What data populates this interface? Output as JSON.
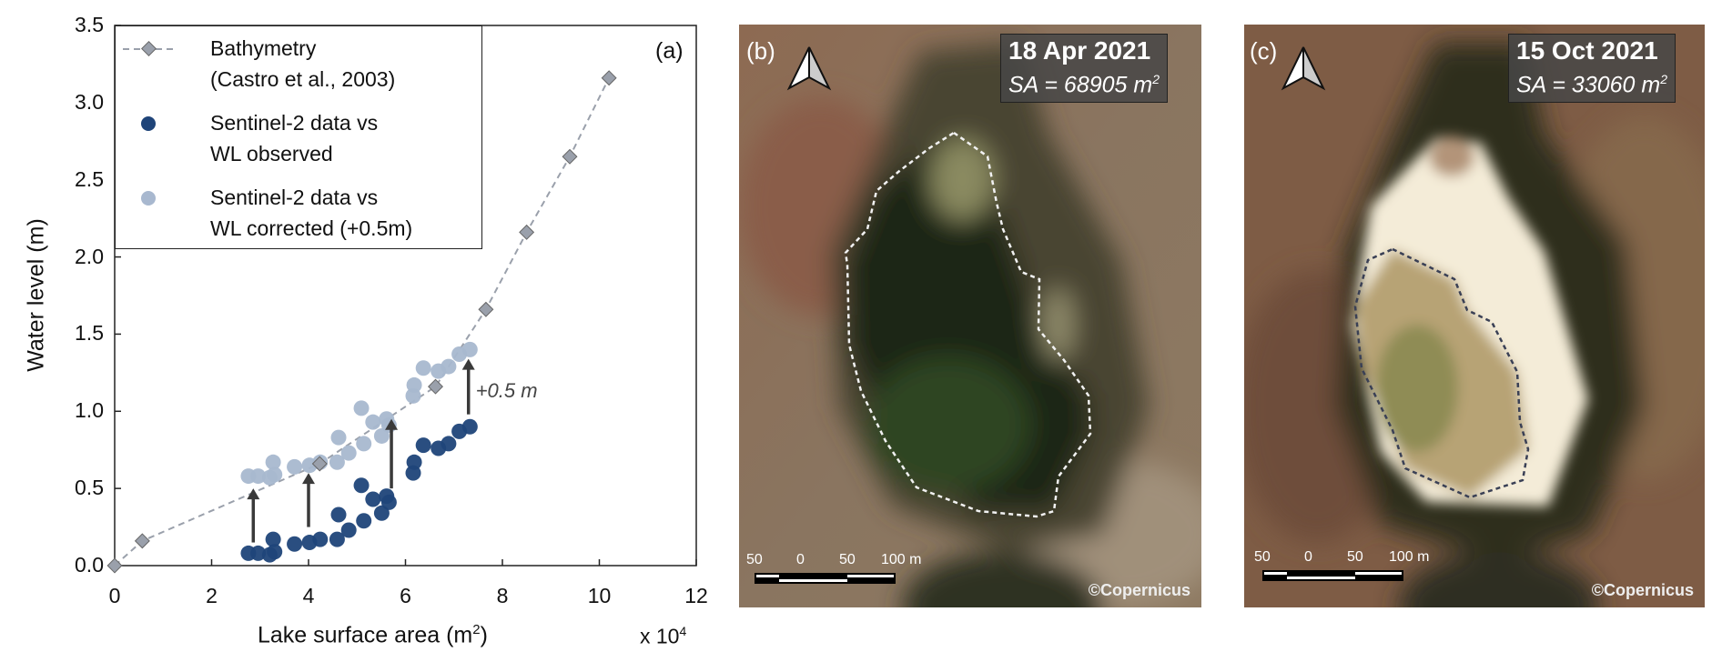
{
  "chart_data": {
    "type": "scatter",
    "panel_label": "(a)",
    "xlabel": "Lake surface area (m",
    "xlabel_sup": "2",
    "xlabel_end": ")",
    "x_multiplier": "x 10",
    "x_multiplier_sup": "4",
    "ylabel": "Water level (m)",
    "xlim": [
      0,
      12
    ],
    "ylim": [
      0,
      3.5
    ],
    "x_ticks": [
      "0",
      "2",
      "4",
      "6",
      "8",
      "10",
      "12"
    ],
    "y_ticks": [
      "0.0",
      "0.5",
      "1.0",
      "1.5",
      "2.0",
      "2.5",
      "3.0",
      "3.5"
    ],
    "grid": false,
    "legend_placement": "top-left",
    "series": [
      {
        "name": "Bathymetry (Castro et al., 2003)",
        "legend_lines": [
          "Bathymetry",
          "(Castro et al., 2003)"
        ],
        "style": "dashed-line-diamond",
        "color": "#9aa0ab",
        "x": [
          0,
          0.57,
          4.23,
          6.62,
          7.66,
          8.5,
          9.39,
          10.2
        ],
        "y": [
          0,
          0.16,
          0.66,
          1.16,
          1.66,
          2.16,
          2.65,
          3.16
        ]
      },
      {
        "name": "Sentinel-2 data vs WL observed",
        "legend_lines": [
          "Sentinel-2 data vs",
          "WL observed"
        ],
        "style": "circle",
        "color": "#1f4479",
        "x": [
          2.76,
          2.96,
          3.2,
          3.27,
          3.3,
          3.71,
          4.02,
          4.24,
          4.59,
          4.62,
          4.83,
          5.09,
          5.14,
          5.33,
          5.51,
          5.61,
          5.66,
          6.16,
          6.18,
          6.37,
          6.68,
          6.89,
          7.11,
          7.33
        ],
        "y": [
          0.08,
          0.08,
          0.07,
          0.17,
          0.09,
          0.14,
          0.15,
          0.17,
          0.17,
          0.33,
          0.23,
          0.52,
          0.29,
          0.43,
          0.34,
          0.45,
          0.41,
          0.6,
          0.67,
          0.78,
          0.76,
          0.79,
          0.87,
          0.9
        ]
      },
      {
        "name": "Sentinel-2 data vs WL corrected (+0.5m)",
        "legend_lines": [
          "Sentinel-2 data vs",
          "WL corrected (+0.5m)"
        ],
        "style": "circle",
        "color": "#a8b8cf",
        "x": [
          2.76,
          2.96,
          3.2,
          3.27,
          3.3,
          3.71,
          4.02,
          4.24,
          4.59,
          4.62,
          4.83,
          5.09,
          5.14,
          5.33,
          5.51,
          5.61,
          5.66,
          6.16,
          6.18,
          6.37,
          6.68,
          6.89,
          7.11,
          7.33
        ],
        "y": [
          0.58,
          0.58,
          0.57,
          0.67,
          0.59,
          0.64,
          0.65,
          0.67,
          0.67,
          0.83,
          0.73,
          1.02,
          0.79,
          0.93,
          0.84,
          0.95,
          0.91,
          1.1,
          1.17,
          1.28,
          1.26,
          1.29,
          1.37,
          1.4
        ]
      }
    ],
    "annotations": {
      "shift_label": "+0.5 m",
      "arrows": [
        {
          "x": 2.86,
          "y_from": 0.15,
          "y_to": 0.5
        },
        {
          "x": 4.0,
          "y_from": 0.25,
          "y_to": 0.6
        },
        {
          "x": 5.71,
          "y_from": 0.5,
          "y_to": 0.95
        },
        {
          "x": 7.3,
          "y_from": 0.98,
          "y_to": 1.34
        }
      ]
    }
  },
  "panels": [
    {
      "label": "(b)",
      "date": "18 Apr 2021",
      "sa_prefix": "SA = 68905 m",
      "sa_sup": "2",
      "outline_color": "#f2f2f2",
      "credit": "©Copernicus",
      "scale": [
        "50",
        "0",
        "50",
        "100 m"
      ]
    },
    {
      "label": "(c)",
      "date": "15 Oct 2021",
      "sa_prefix": "SA = 33060 m",
      "sa_sup": "2",
      "outline_color": "#3a4055",
      "credit": "©Copernicus",
      "scale": [
        "50",
        "0",
        "50",
        "100 m"
      ]
    }
  ]
}
